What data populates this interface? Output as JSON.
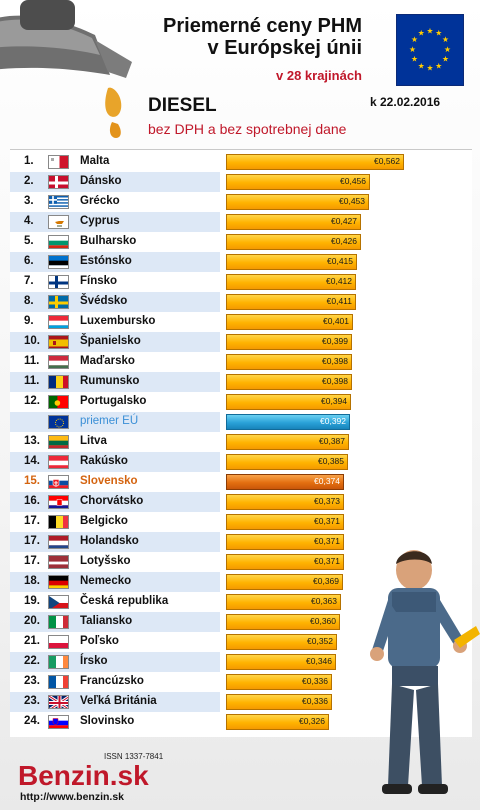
{
  "header": {
    "title_line1": "Priemerné ceny PHM",
    "title_line2": "v Európskej únii",
    "subtitle": "v 28 krajinách",
    "date": "k 22.02.2016",
    "fuel": "DIESEL",
    "fuel_sub": "bez DPH a bez spotrebnej dane"
  },
  "footer": {
    "issn": "ISSN 1337-7841",
    "logo_main": "Benzin",
    "logo_suffix": ".sk",
    "url": "http://www.benzin.sk"
  },
  "colors": {
    "accent_red": "#c0182a",
    "bar_yellow": "#ffb300",
    "avg_blue": "#2aa2d8",
    "highlight_orange": "#e46f10",
    "alt_row": "#dde8f6"
  },
  "chart_data": {
    "type": "bar",
    "orientation": "horizontal",
    "value_prefix": "€",
    "xlim": [
      0,
      0.6
    ],
    "rows": [
      {
        "rank": "1.",
        "country": "Malta",
        "value": 0.562,
        "label": "€0,562",
        "flag": "mt"
      },
      {
        "rank": "2.",
        "country": "Dánsko",
        "value": 0.456,
        "label": "€0,456",
        "flag": "dk"
      },
      {
        "rank": "3.",
        "country": "Grécko",
        "value": 0.453,
        "label": "€0,453",
        "flag": "gr"
      },
      {
        "rank": "4.",
        "country": "Cyprus",
        "value": 0.427,
        "label": "€0,427",
        "flag": "cy"
      },
      {
        "rank": "5.",
        "country": "Bulharsko",
        "value": 0.426,
        "label": "€0,426",
        "flag": "bg"
      },
      {
        "rank": "6.",
        "country": "Estónsko",
        "value": 0.415,
        "label": "€0,415",
        "flag": "ee"
      },
      {
        "rank": "7.",
        "country": "Fínsko",
        "value": 0.412,
        "label": "€0,412",
        "flag": "fi"
      },
      {
        "rank": "8.",
        "country": "Švédsko",
        "value": 0.411,
        "label": "€0,411",
        "flag": "se"
      },
      {
        "rank": "9.",
        "country": "Luxembursko",
        "value": 0.401,
        "label": "€0,401",
        "flag": "lu"
      },
      {
        "rank": "10.",
        "country": "Španielsko",
        "value": 0.399,
        "label": "€0,399",
        "flag": "es"
      },
      {
        "rank": "11.",
        "country": "Maďarsko",
        "value": 0.398,
        "label": "€0,398",
        "flag": "hu"
      },
      {
        "rank": "11.",
        "country": "Rumunsko",
        "value": 0.398,
        "label": "€0,398",
        "flag": "ro"
      },
      {
        "rank": "12.",
        "country": "Portugalsko",
        "value": 0.394,
        "label": "€0,394",
        "flag": "pt"
      },
      {
        "rank": "",
        "country": "priemer EÚ",
        "value": 0.392,
        "label": "€0,392",
        "flag": "eu",
        "style": "avg"
      },
      {
        "rank": "13.",
        "country": "Litva",
        "value": 0.387,
        "label": "€0,387",
        "flag": "lt"
      },
      {
        "rank": "14.",
        "country": "Rakúsko",
        "value": 0.385,
        "label": "€0,385",
        "flag": "at"
      },
      {
        "rank": "15.",
        "country": "Slovensko",
        "value": 0.374,
        "label": "€0,374",
        "flag": "sk",
        "style": "hl"
      },
      {
        "rank": "16.",
        "country": "Chorvátsko",
        "value": 0.373,
        "label": "€0,373",
        "flag": "hr"
      },
      {
        "rank": "17.",
        "country": "Belgicko",
        "value": 0.371,
        "label": "€0,371",
        "flag": "be"
      },
      {
        "rank": "17.",
        "country": "Holandsko",
        "value": 0.371,
        "label": "€0,371",
        "flag": "nl"
      },
      {
        "rank": "17.",
        "country": "Lotyšsko",
        "value": 0.371,
        "label": "€0,371",
        "flag": "lv"
      },
      {
        "rank": "18.",
        "country": "Nemecko",
        "value": 0.369,
        "label": "€0,369",
        "flag": "de"
      },
      {
        "rank": "19.",
        "country": "Česká republika",
        "value": 0.363,
        "label": "€0,363",
        "flag": "cz"
      },
      {
        "rank": "20.",
        "country": "Taliansko",
        "value": 0.36,
        "label": "€0,360",
        "flag": "it"
      },
      {
        "rank": "21.",
        "country": "Poľsko",
        "value": 0.352,
        "label": "€0,352",
        "flag": "pl"
      },
      {
        "rank": "22.",
        "country": "Írsko",
        "value": 0.346,
        "label": "€0,346",
        "flag": "ie"
      },
      {
        "rank": "23.",
        "country": "Francúzsko",
        "value": 0.336,
        "label": "€0,336",
        "flag": "fr"
      },
      {
        "rank": "23.",
        "country": "Veľká Británia",
        "value": 0.336,
        "label": "€0,336",
        "flag": "gb"
      },
      {
        "rank": "24.",
        "country": "Slovinsko",
        "value": 0.326,
        "label": "€0,326",
        "flag": "si"
      }
    ]
  }
}
